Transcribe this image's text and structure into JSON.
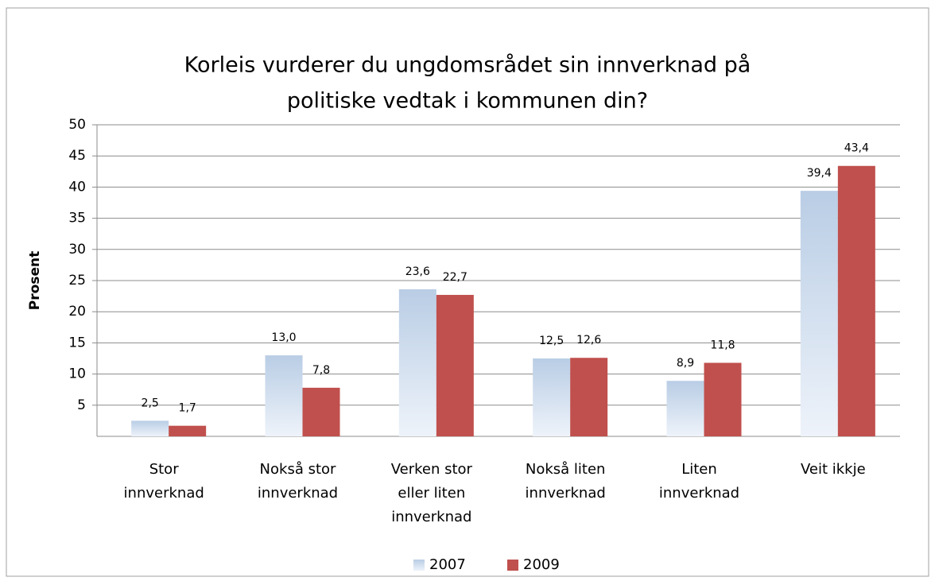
{
  "chart_data": {
    "type": "bar",
    "title": [
      "Korleis vurderer du ungdomsrådet  sin innverknad på",
      "politiske vedtak i kommunen din?"
    ],
    "ylabel": "Prosent",
    "categories": [
      "Stor innverknad",
      "Nokså stor innverknad",
      "Verken stor eller liten innverknad",
      "Nokså liten innverknad",
      "Liten innverknad",
      "Veit ikkje"
    ],
    "series": [
      {
        "name": "2007",
        "color": "#b9cde5",
        "values": [
          2.5,
          13.0,
          23.6,
          12.5,
          8.9,
          39.4
        ],
        "value_labels": [
          "2,5",
          "13,0",
          "23,6",
          "12,5",
          "8,9",
          "39,4"
        ]
      },
      {
        "name": "2009",
        "color": "#c0504d",
        "values": [
          1.7,
          7.8,
          22.7,
          12.6,
          11.8,
          43.4
        ],
        "value_labels": [
          "1,7",
          "7,8",
          "22,7",
          "12,6",
          "11,8",
          "43,4"
        ]
      }
    ],
    "ylim": [
      0,
      50
    ],
    "yticks": [
      5,
      10,
      15,
      20,
      25,
      30,
      35,
      40,
      45,
      50
    ],
    "grid": true,
    "legend": "bottom"
  }
}
